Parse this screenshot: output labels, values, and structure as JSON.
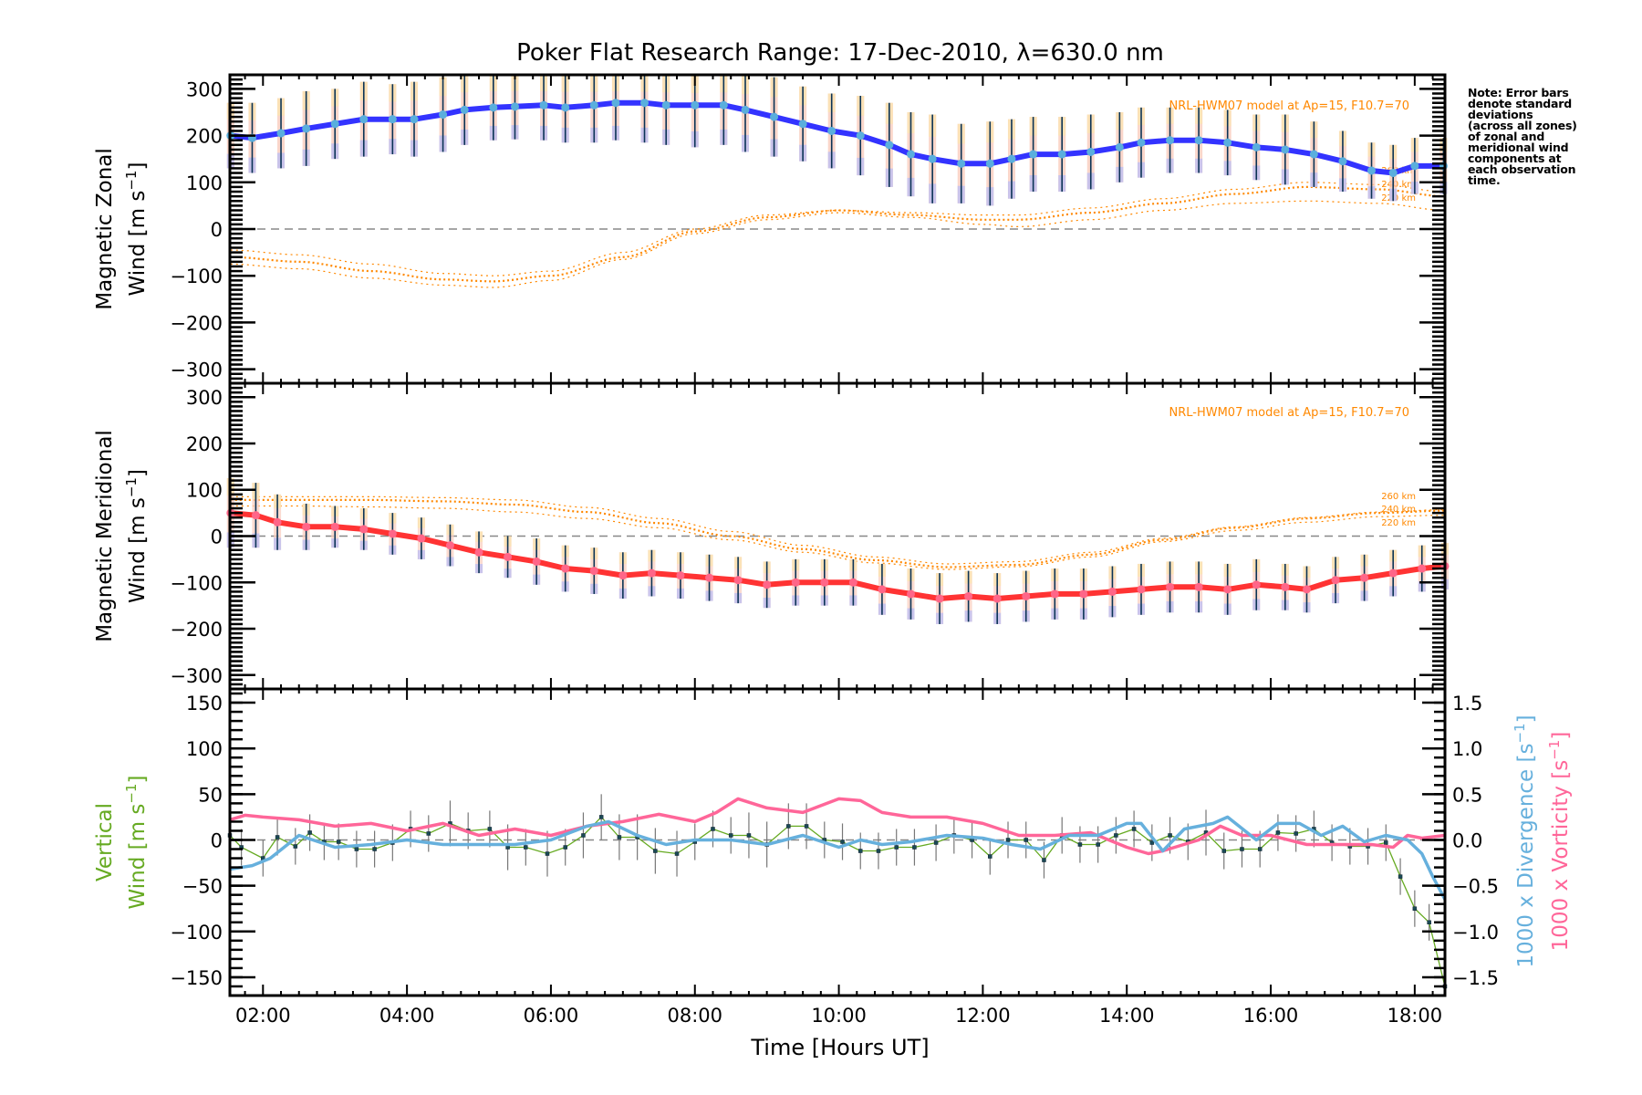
{
  "chart_data": {
    "title": "Poker Flat Research Range: 17-Dec-2010, λ=630.0 nm",
    "xlabel": "Time [Hours UT]",
    "xlim": [
      1.54,
      18.42
    ],
    "xticks": [
      2,
      4,
      6,
      8,
      10,
      12,
      14,
      16,
      18
    ],
    "xtick_labels": [
      "02:00",
      "04:00",
      "06:00",
      "08:00",
      "10:00",
      "12:00",
      "14:00",
      "16:00",
      "18:00"
    ],
    "note": "Note: Error bars\ndenote standard\ndeviations\n(across all zones)\nof zonal and\nmeridional wind\ncomponents at\neach observation\ntime.",
    "model_label": "NRL-HWM07 model at Ap=15, F10.7=70",
    "altitude_labels": [
      "260 km",
      "240 km",
      "220 km"
    ],
    "panels": [
      {
        "type": "line",
        "name": "zonal",
        "ylabel_line1": "Magnetic Zonal",
        "ylabel_line2": "Wind [m s",
        "ylim": [
          -330,
          330
        ],
        "yticks": [
          300,
          200,
          100,
          0,
          -100,
          -200,
          -300
        ],
        "color": "#3333ff",
        "series": {
          "t": [
            1.55,
            1.85,
            2.25,
            2.6,
            3.0,
            3.4,
            3.8,
            4.1,
            4.5,
            4.8,
            5.2,
            5.5,
            5.9,
            6.2,
            6.6,
            6.9,
            7.3,
            7.6,
            8.0,
            8.4,
            8.7,
            9.1,
            9.5,
            9.9,
            10.3,
            10.7,
            11.0,
            11.3,
            11.7,
            12.1,
            12.4,
            12.7,
            13.1,
            13.5,
            13.9,
            14.2,
            14.6,
            15.0,
            15.4,
            15.8,
            16.2,
            16.6,
            17.0,
            17.4,
            17.7,
            18.0,
            18.4
          ],
          "values": [
            200,
            195,
            205,
            215,
            225,
            235,
            235,
            235,
            245,
            255,
            260,
            262,
            265,
            260,
            265,
            270,
            270,
            265,
            265,
            265,
            255,
            240,
            225,
            210,
            200,
            180,
            160,
            150,
            140,
            140,
            150,
            160,
            160,
            165,
            175,
            185,
            190,
            190,
            185,
            175,
            170,
            160,
            145,
            125,
            120,
            135,
            135
          ],
          "err": [
            70,
            75,
            75,
            80,
            75,
            80,
            75,
            80,
            80,
            75,
            70,
            70,
            75,
            75,
            80,
            80,
            85,
            85,
            90,
            85,
            90,
            85,
            80,
            80,
            85,
            90,
            90,
            95,
            85,
            90,
            85,
            80,
            80,
            80,
            75,
            75,
            70,
            70,
            70,
            70,
            75,
            70,
            65,
            60,
            60,
            60,
            60
          ]
        },
        "model": {
          "t": [
            1.55,
            2.5,
            3.5,
            4.5,
            5.2,
            6.0,
            7.0,
            8.0,
            9.0,
            10.0,
            11.0,
            12.0,
            12.5,
            13.5,
            14.5,
            15.5,
            16.5,
            17.5,
            18.42
          ],
          "h260": [
            -45,
            -55,
            -75,
            -95,
            -100,
            -90,
            -50,
            0,
            30,
            40,
            35,
            30,
            30,
            45,
            65,
            85,
            100,
            95,
            80
          ],
          "h240": [
            -60,
            -70,
            -90,
            -108,
            -112,
            -100,
            -60,
            -5,
            25,
            40,
            30,
            20,
            20,
            35,
            55,
            75,
            90,
            85,
            70
          ],
          "h220": [
            -75,
            -85,
            -105,
            -120,
            -125,
            -110,
            -65,
            -10,
            20,
            35,
            25,
            10,
            5,
            20,
            40,
            55,
            60,
            55,
            40
          ]
        }
      },
      {
        "type": "line",
        "name": "meridional",
        "ylabel_line1": "Magnetic Meridional",
        "ylabel_line2": "Wind [m s",
        "ylim": [
          -330,
          330
        ],
        "yticks": [
          300,
          200,
          100,
          0,
          -100,
          -200,
          -300
        ],
        "color": "#ff3333",
        "series": {
          "t": [
            1.55,
            1.9,
            2.2,
            2.6,
            3.0,
            3.4,
            3.8,
            4.2,
            4.6,
            5.0,
            5.4,
            5.8,
            6.2,
            6.6,
            7.0,
            7.4,
            7.8,
            8.2,
            8.6,
            9.0,
            9.4,
            9.8,
            10.2,
            10.6,
            11.0,
            11.4,
            11.8,
            12.2,
            12.6,
            13.0,
            13.4,
            13.8,
            14.2,
            14.6,
            15.0,
            15.4,
            15.8,
            16.2,
            16.5,
            16.9,
            17.3,
            17.7,
            18.1,
            18.42
          ],
          "values": [
            50,
            45,
            30,
            20,
            20,
            15,
            5,
            -5,
            -20,
            -35,
            -45,
            -55,
            -70,
            -75,
            -85,
            -80,
            -85,
            -90,
            -95,
            -105,
            -100,
            -100,
            -100,
            -115,
            -125,
            -135,
            -130,
            -135,
            -130,
            -125,
            -125,
            -120,
            -115,
            -110,
            -110,
            -115,
            -105,
            -110,
            -115,
            -95,
            -90,
            -80,
            -70,
            -65
          ],
          "err": [
            75,
            70,
            60,
            50,
            45,
            45,
            45,
            45,
            45,
            45,
            45,
            50,
            50,
            50,
            50,
            50,
            50,
            50,
            50,
            50,
            50,
            50,
            50,
            55,
            55,
            55,
            55,
            55,
            55,
            55,
            55,
            55,
            55,
            55,
            55,
            55,
            55,
            50,
            50,
            50,
            50,
            50,
            50,
            50
          ]
        },
        "model": {
          "t": [
            1.55,
            2.5,
            3.5,
            4.5,
            5.5,
            6.5,
            7.5,
            8.5,
            9.5,
            10.5,
            11.5,
            12.5,
            13.5,
            14.5,
            15.5,
            16.5,
            17.5,
            18.42
          ],
          "h260": [
            85,
            85,
            85,
            83,
            78,
            62,
            38,
            10,
            -20,
            -45,
            -60,
            -55,
            -35,
            -5,
            20,
            40,
            52,
            57
          ],
          "h240": [
            78,
            78,
            78,
            75,
            68,
            52,
            28,
            0,
            -28,
            -52,
            -67,
            -62,
            -40,
            -8,
            18,
            38,
            50,
            55
          ],
          "h220": [
            65,
            65,
            63,
            60,
            52,
            38,
            18,
            -8,
            -35,
            -58,
            -72,
            -66,
            -45,
            -12,
            12,
            30,
            42,
            45
          ]
        }
      },
      {
        "type": "line",
        "name": "vertical",
        "ylabel_line1": "Vertical",
        "ylabel_line2": "Wind [m s",
        "ylim": [
          -170,
          165
        ],
        "yticks": [
          150,
          100,
          50,
          0,
          -50,
          -100,
          -150
        ],
        "y2label_divergence": "1000 x Divergence [s",
        "y2label_vorticity": "1000 x Vorticity [s",
        "y2lim": [
          -1.7,
          1.65
        ],
        "y2ticks": [
          1.5,
          1.0,
          0.5,
          0.0,
          -0.5,
          -1.0,
          -1.5
        ],
        "y2tick_labels": [
          "1.5",
          "1.0",
          "0.5",
          "0.0",
          "−0.5",
          "−1.0",
          "−1.5"
        ],
        "colors": {
          "vertical": "#66aa22",
          "divergence": "#66b0dd",
          "vorticity": "#ff6699"
        },
        "vertical": {
          "t": [
            1.54,
            1.7,
            2.0,
            2.2,
            2.45,
            2.65,
            2.85,
            3.05,
            3.3,
            3.55,
            3.8,
            4.05,
            4.3,
            4.6,
            4.85,
            5.15,
            5.4,
            5.65,
            5.95,
            6.2,
            6.45,
            6.7,
            6.95,
            7.2,
            7.45,
            7.75,
            8.0,
            8.25,
            8.5,
            8.75,
            9.0,
            9.3,
            9.55,
            9.8,
            10.05,
            10.3,
            10.55,
            10.8,
            11.05,
            11.35,
            11.6,
            11.85,
            12.1,
            12.35,
            12.6,
            12.85,
            13.1,
            13.35,
            13.6,
            13.85,
            14.1,
            14.35,
            14.6,
            14.85,
            15.1,
            15.35,
            15.6,
            15.85,
            16.1,
            16.35,
            16.6,
            16.85,
            17.1,
            17.35,
            17.6,
            17.8,
            18.0,
            18.2,
            18.42
          ],
          "values": [
            5,
            -8,
            -20,
            3,
            -7,
            8,
            -2,
            -2,
            -10,
            -10,
            -3,
            12,
            7,
            18,
            10,
            12,
            -8,
            -8,
            -15,
            -8,
            5,
            25,
            3,
            3,
            -12,
            -15,
            -2,
            12,
            5,
            5,
            -5,
            15,
            15,
            0,
            -2,
            -12,
            -12,
            -8,
            -8,
            -3,
            5,
            0,
            -18,
            0,
            0,
            -22,
            5,
            -5,
            -5,
            5,
            12,
            -3,
            5,
            -2,
            8,
            -12,
            -10,
            -10,
            8,
            7,
            12,
            -3,
            -7,
            -7,
            -3,
            -40,
            -75,
            -90,
            -160
          ],
          "err": [
            15,
            20,
            20,
            20,
            20,
            20,
            20,
            20,
            20,
            20,
            20,
            20,
            20,
            25,
            20,
            20,
            25,
            20,
            25,
            20,
            25,
            25,
            25,
            25,
            25,
            25,
            20,
            20,
            20,
            25,
            25,
            25,
            25,
            20,
            20,
            20,
            20,
            20,
            20,
            20,
            20,
            20,
            20,
            20,
            20,
            20,
            20,
            20,
            20,
            20,
            20,
            20,
            20,
            20,
            25,
            20,
            20,
            20,
            20,
            20,
            20,
            20,
            20,
            20,
            20,
            20,
            20,
            20,
            20
          ]
        },
        "divergence": {
          "t": [
            1.54,
            1.85,
            2.1,
            2.5,
            3.0,
            3.5,
            4.0,
            4.5,
            5.0,
            5.5,
            6.0,
            6.5,
            6.8,
            7.2,
            7.6,
            8.0,
            8.5,
            9.0,
            9.5,
            10.0,
            10.3,
            10.6,
            11.0,
            11.5,
            12.0,
            12.4,
            12.8,
            13.2,
            13.6,
            14.0,
            14.2,
            14.5,
            14.8,
            15.2,
            15.4,
            15.8,
            16.1,
            16.4,
            16.7,
            17.0,
            17.3,
            17.6,
            17.9,
            18.1,
            18.25,
            18.42
          ],
          "values": [
            -0.32,
            -0.28,
            -0.2,
            0.05,
            -0.08,
            -0.05,
            0.0,
            -0.05,
            -0.05,
            -0.05,
            0.0,
            0.15,
            0.2,
            0.05,
            -0.05,
            0.0,
            0.0,
            -0.05,
            0.05,
            -0.08,
            0.0,
            -0.05,
            -0.02,
            0.05,
            0.02,
            -0.05,
            -0.1,
            0.05,
            0.05,
            0.18,
            0.18,
            -0.12,
            0.12,
            0.18,
            0.25,
            0.0,
            0.18,
            0.18,
            0.05,
            0.15,
            -0.02,
            0.05,
            0.0,
            -0.15,
            -0.4,
            -0.65
          ]
        },
        "vorticity": {
          "t": [
            1.54,
            1.75,
            2.0,
            2.5,
            3.0,
            3.5,
            4.0,
            4.5,
            5.0,
            5.5,
            6.0,
            6.5,
            7.0,
            7.5,
            8.0,
            8.3,
            8.6,
            9.0,
            9.5,
            10.0,
            10.3,
            10.6,
            11.0,
            11.5,
            12.0,
            12.5,
            13.0,
            13.5,
            14.0,
            14.3,
            14.5,
            15.0,
            15.3,
            15.6,
            16.0,
            16.5,
            17.0,
            17.4,
            17.7,
            17.9,
            18.1,
            18.42
          ],
          "values": [
            0.22,
            0.27,
            0.25,
            0.22,
            0.15,
            0.18,
            0.1,
            0.18,
            0.05,
            0.12,
            0.05,
            0.15,
            0.2,
            0.28,
            0.2,
            0.3,
            0.45,
            0.35,
            0.3,
            0.45,
            0.43,
            0.3,
            0.25,
            0.25,
            0.18,
            0.05,
            0.05,
            0.08,
            -0.08,
            -0.15,
            -0.12,
            0.0,
            0.15,
            0.05,
            0.05,
            -0.05,
            -0.05,
            -0.05,
            -0.08,
            0.05,
            0.02,
            0.05
          ]
        }
      }
    ]
  }
}
